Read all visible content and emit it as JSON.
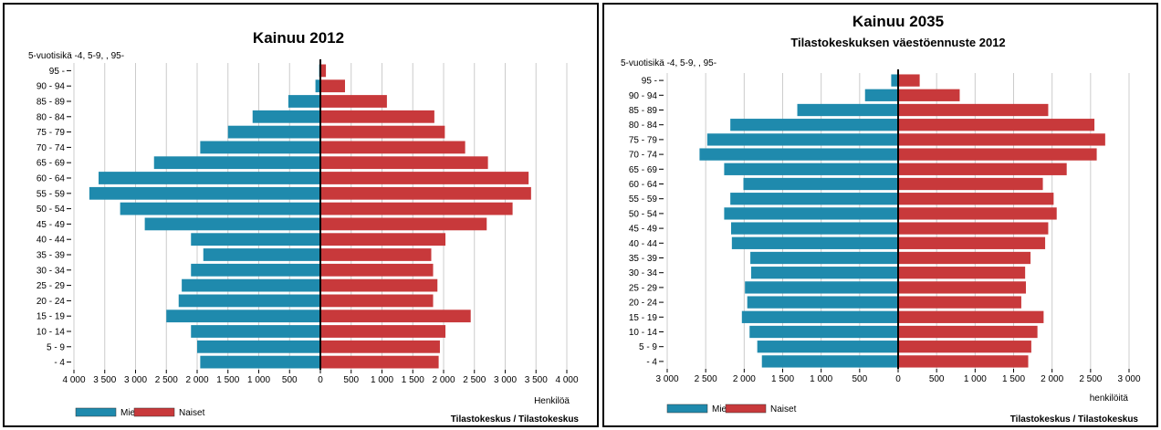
{
  "charts": [
    {
      "title": "Kainuu 2012",
      "subtitle": "",
      "age_label": "5-vuotisikä -4, 5-9, , 95-",
      "xlabel": "Henkilöä",
      "source": "Tilastokeskus / Tilastokeskus",
      "legend": [
        "Miehet",
        "Naiset"
      ],
      "ticks": [
        4000,
        3500,
        3000,
        2500,
        2000,
        1500,
        1000,
        500,
        0,
        500,
        1000,
        1500,
        2000,
        2500,
        3000,
        3500,
        4000
      ],
      "tick_labels": [
        "4 000",
        "3 500",
        "3 000",
        "2 500",
        "2 000",
        "1 500",
        "1 000",
        "500",
        "0",
        "500",
        "1 000",
        "1 500",
        "2 000",
        "2 500",
        "3 000",
        "3 500",
        "4 000"
      ]
    },
    {
      "title": "Kainuu 2035",
      "subtitle": "Tilastokeskuksen väestöennuste 2012",
      "age_label": "5-vuotisikä -4, 5-9, , 95-",
      "xlabel": "henkilöitä",
      "source": "Tilastokeskus / Tilastokeskus",
      "legend": [
        "Miehet",
        "Naiset"
      ],
      "ticks": [
        3000,
        2500,
        2000,
        1500,
        1000,
        500,
        0,
        500,
        1000,
        1500,
        2000,
        2500,
        3000
      ],
      "tick_labels": [
        "3 000",
        "2 500",
        "2 000",
        "1 500",
        "1 000",
        "500",
        "0",
        "500",
        "1 000",
        "1 500",
        "2 000",
        "2 500",
        "3 000"
      ]
    }
  ],
  "chart_data": [
    {
      "type": "bar",
      "orientation": "horizontal-pyramid",
      "title": "Kainuu 2012",
      "xlabel": "Henkilöä",
      "xlim": [
        -4000,
        4000
      ],
      "grid": true,
      "legend_position": "bottom-left",
      "categories": [
        "95 -",
        "90 - 94",
        "85 - 89",
        "80 - 84",
        "75 - 79",
        "70 - 74",
        "65 - 69",
        "60 - 64",
        "55 - 59",
        "50 - 54",
        "45 - 49",
        "40 - 44",
        "35 - 39",
        "30 - 34",
        "25 - 29",
        "20 - 24",
        "15 - 19",
        "10 - 14",
        "5 - 9",
        "- 4"
      ],
      "series": [
        {
          "name": "Miehet",
          "color": "#1f8aad",
          "values": [
            20,
            80,
            520,
            1100,
            1500,
            1950,
            2700,
            3600,
            3750,
            3250,
            2850,
            2100,
            1900,
            2100,
            2250,
            2300,
            2500,
            2100,
            2000,
            1950
          ]
        },
        {
          "name": "Naiset",
          "color": "#c8393b",
          "values": [
            90,
            400,
            1080,
            1850,
            2020,
            2350,
            2720,
            3380,
            3420,
            3120,
            2700,
            2030,
            1800,
            1830,
            1900,
            1830,
            2440,
            2030,
            1940,
            1920
          ]
        }
      ]
    },
    {
      "type": "bar",
      "orientation": "horizontal-pyramid",
      "title": "Kainuu 2035",
      "subtitle": "Tilastokeskuksen väestöennuste 2012",
      "xlabel": "henkilöitä",
      "xlim": [
        -3000,
        3000
      ],
      "grid": true,
      "legend_position": "bottom-left",
      "categories": [
        "95 -",
        "90 - 94",
        "85 - 89",
        "80 - 84",
        "75 - 79",
        "70 - 74",
        "65 - 69",
        "60 - 64",
        "55 - 59",
        "50 - 54",
        "45 - 49",
        "40 - 44",
        "35 - 39",
        "30 - 34",
        "25 - 29",
        "20 - 24",
        "15 - 19",
        "10 - 14",
        "5 - 9",
        "- 4"
      ],
      "series": [
        {
          "name": "Miehet",
          "color": "#1f8aad",
          "values": [
            90,
            430,
            1310,
            2180,
            2480,
            2580,
            2260,
            2010,
            2180,
            2260,
            2170,
            2160,
            1920,
            1910,
            1990,
            1960,
            2030,
            1930,
            1830,
            1770
          ]
        },
        {
          "name": "Naiset",
          "color": "#c8393b",
          "values": [
            280,
            800,
            1950,
            2550,
            2690,
            2580,
            2190,
            1880,
            2020,
            2060,
            1950,
            1910,
            1720,
            1650,
            1660,
            1600,
            1890,
            1810,
            1730,
            1690
          ]
        }
      ]
    }
  ]
}
